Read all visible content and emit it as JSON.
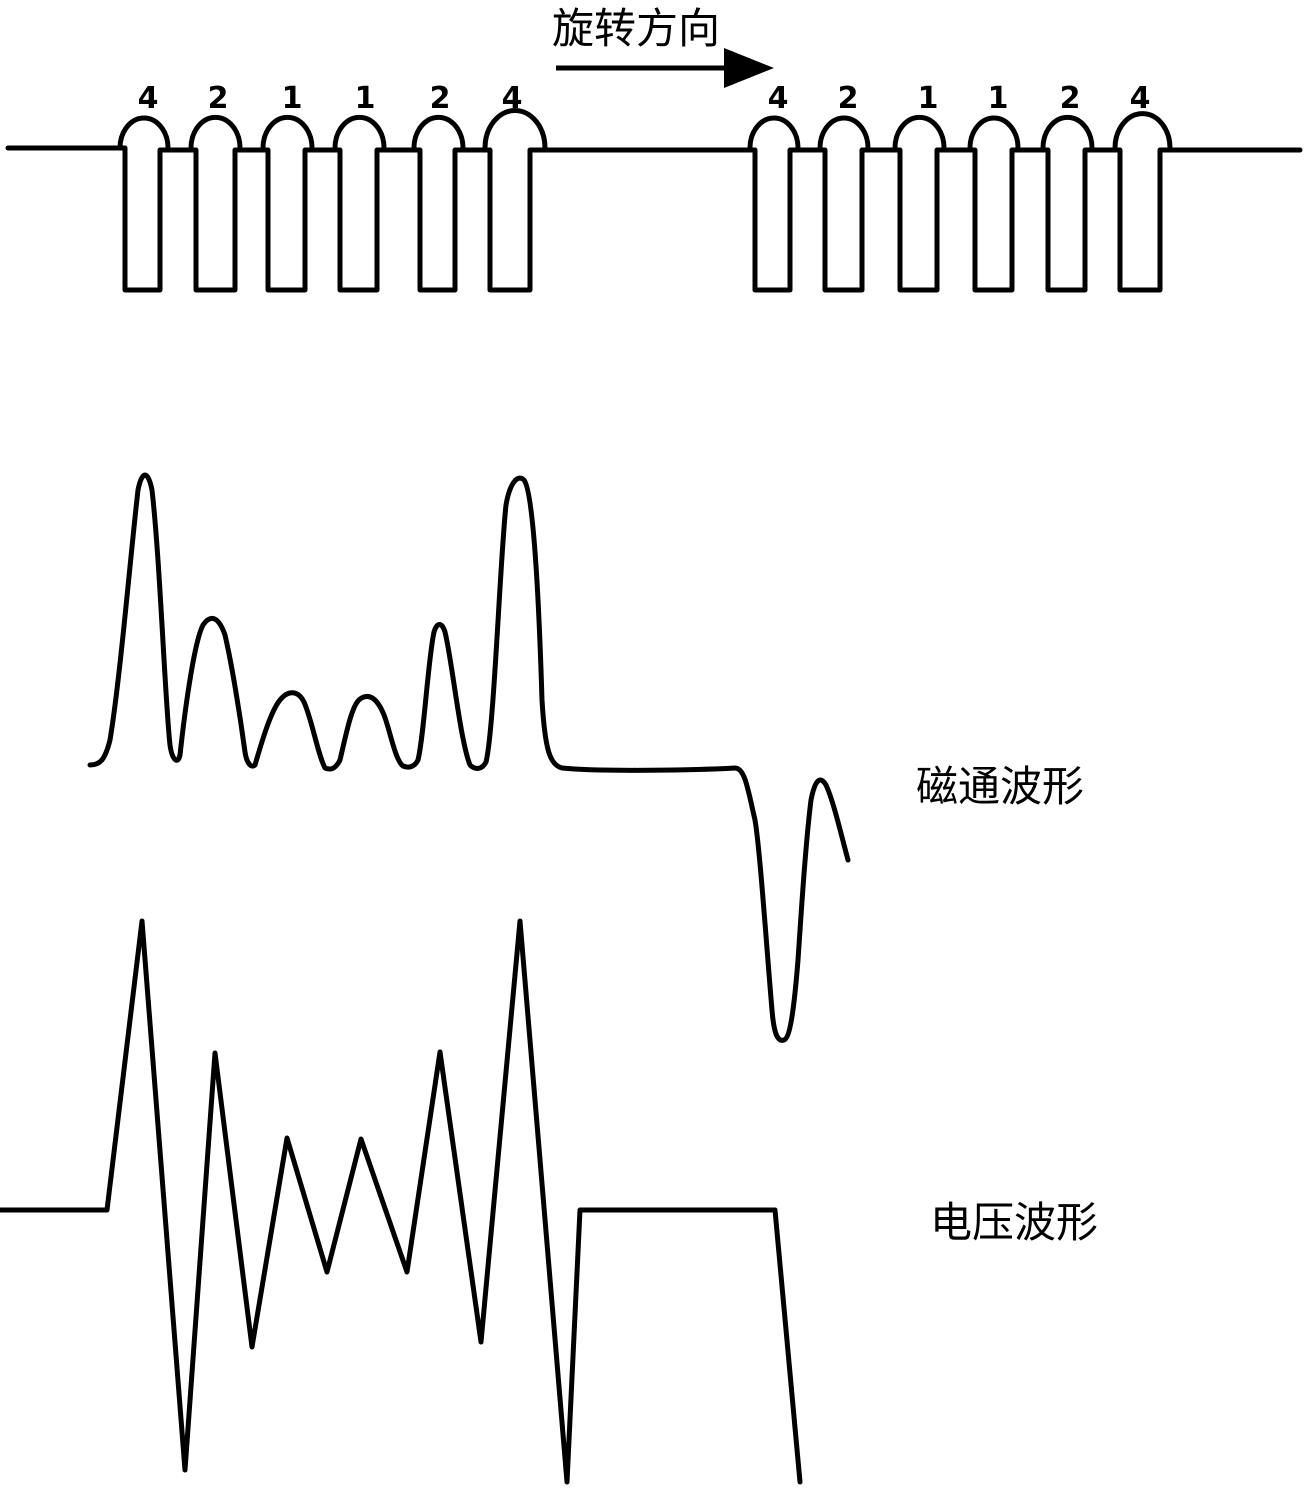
{
  "rotation_label": "旋转方向",
  "flux_label": "磁通波形",
  "voltage_label": "电压波形",
  "coil_numbers_left": [
    "4",
    "2",
    "1",
    "1",
    "2",
    "4"
  ],
  "coil_numbers_right": [
    "4",
    "2",
    "1",
    "1",
    "2",
    "4"
  ],
  "colors": {
    "line": "#000000",
    "background": "#ffffff"
  }
}
